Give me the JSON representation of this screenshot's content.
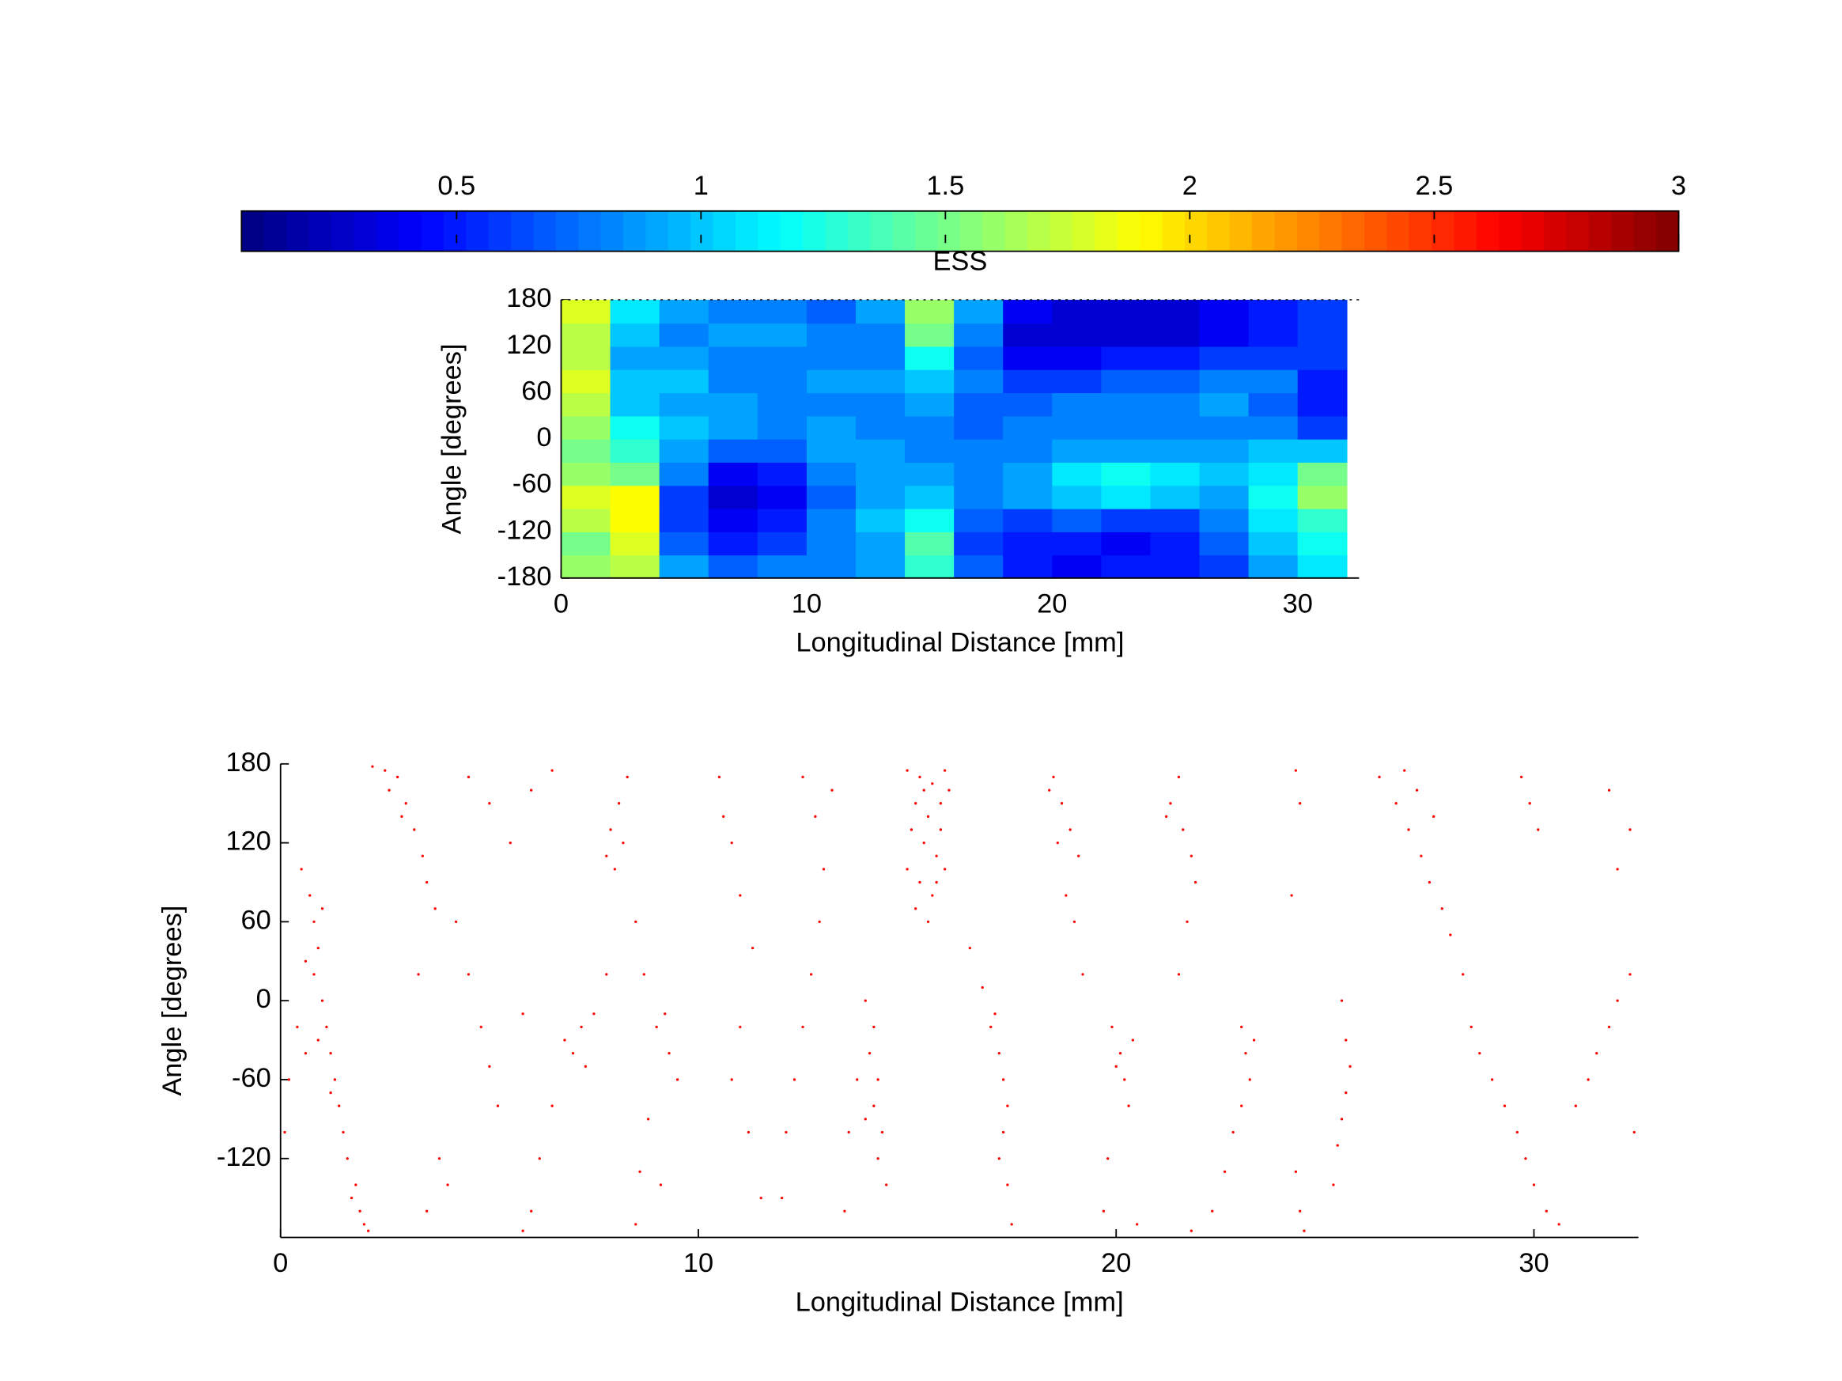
{
  "chart_data": [
    {
      "type": "heatmap",
      "colorbar_label": "ESS",
      "x_label": "Longitudinal Distance [mm]",
      "y_label": "Angle [degrees]",
      "clim": [
        0.06,
        3
      ],
      "cticks": [
        0.5,
        1,
        1.5,
        2,
        2.5,
        3
      ],
      "xlim": [
        0,
        32.5
      ],
      "xticks": [
        0,
        10,
        20,
        30
      ],
      "ylim": [
        -180,
        180
      ],
      "yticks": [
        -180,
        -120,
        -60,
        0,
        60,
        120,
        180
      ],
      "x": [
        1,
        3,
        5,
        7,
        9,
        11,
        13,
        15,
        17,
        19,
        21,
        23,
        25,
        27,
        29,
        31
      ],
      "y": [
        -165,
        -135,
        -105,
        -75,
        -45,
        -15,
        15,
        45,
        75,
        105,
        135,
        165
      ],
      "values": [
        [
          1.6,
          1.7,
          0.9,
          0.7,
          0.8,
          0.8,
          0.9,
          1.3,
          0.7,
          0.5,
          0.4,
          0.5,
          0.5,
          0.6,
          0.9,
          1.1
        ],
        [
          1.5,
          1.8,
          0.7,
          0.5,
          0.6,
          0.8,
          0.9,
          1.4,
          0.6,
          0.5,
          0.5,
          0.4,
          0.5,
          0.7,
          1.0,
          1.2
        ],
        [
          1.7,
          1.9,
          0.6,
          0.4,
          0.5,
          0.8,
          1.0,
          1.2,
          0.7,
          0.6,
          0.7,
          0.6,
          0.6,
          0.8,
          1.1,
          1.3
        ],
        [
          1.8,
          1.9,
          0.6,
          0.3,
          0.4,
          0.7,
          0.9,
          1.0,
          0.8,
          0.9,
          1.0,
          1.1,
          1.0,
          0.9,
          1.2,
          1.6
        ],
        [
          1.6,
          1.5,
          0.8,
          0.4,
          0.5,
          0.8,
          0.9,
          0.9,
          0.8,
          0.9,
          1.1,
          1.2,
          1.1,
          1.0,
          1.1,
          1.5
        ],
        [
          1.5,
          1.3,
          0.9,
          0.7,
          0.7,
          0.9,
          0.9,
          0.8,
          0.8,
          0.8,
          0.9,
          0.9,
          0.9,
          0.9,
          1.0,
          1.0
        ],
        [
          1.6,
          1.2,
          1.0,
          0.9,
          0.8,
          0.9,
          0.8,
          0.8,
          0.7,
          0.8,
          0.8,
          0.8,
          0.8,
          0.8,
          0.8,
          0.6
        ],
        [
          1.7,
          1.0,
          0.9,
          0.9,
          0.8,
          0.8,
          0.8,
          0.9,
          0.7,
          0.7,
          0.8,
          0.8,
          0.8,
          0.9,
          0.7,
          0.5
        ],
        [
          1.8,
          1.0,
          1.0,
          0.8,
          0.8,
          0.9,
          0.9,
          1.0,
          0.8,
          0.6,
          0.6,
          0.7,
          0.7,
          0.8,
          0.8,
          0.5
        ],
        [
          1.7,
          0.9,
          0.9,
          0.8,
          0.8,
          0.8,
          0.8,
          1.2,
          0.7,
          0.4,
          0.4,
          0.5,
          0.5,
          0.6,
          0.6,
          0.6
        ],
        [
          1.7,
          1.0,
          0.8,
          0.9,
          0.9,
          0.8,
          0.8,
          1.5,
          0.8,
          0.3,
          0.3,
          0.3,
          0.3,
          0.4,
          0.5,
          0.6
        ],
        [
          1.8,
          1.1,
          0.9,
          0.8,
          0.8,
          0.7,
          0.9,
          1.6,
          0.9,
          0.4,
          0.3,
          0.3,
          0.3,
          0.4,
          0.5,
          0.6
        ]
      ]
    },
    {
      "type": "scatter",
      "x_label": "Longitudinal Distance [mm]",
      "y_label": "Angle [degrees]",
      "color": "#ff0000",
      "xlim": [
        0,
        32.5
      ],
      "xticks": [
        0,
        10,
        20,
        30
      ],
      "ylim": [
        -180,
        180
      ],
      "yticks": [
        -120,
        -60,
        0,
        60,
        120,
        180
      ],
      "x": [
        0.5,
        0.7,
        0.8,
        0.9,
        0.8,
        1.0,
        1.1,
        1.2,
        1.3,
        1.4,
        1.5,
        1.6,
        1.8,
        1.9,
        2.1,
        0.6,
        0.4,
        0.2,
        0.1,
        0.9,
        1.2,
        1.7,
        2.0,
        1.0,
        0.6,
        2.2,
        2.5,
        2.8,
        2.6,
        3.0,
        3.2,
        3.4,
        2.9,
        3.5,
        3.7,
        3.3,
        4.5,
        5.0,
        5.5,
        6.0,
        6.5,
        4.2,
        4.5,
        4.8,
        5.0,
        3.8,
        3.5,
        4.0,
        5.2,
        5.8,
        7.0,
        7.2,
        7.5,
        6.8,
        7.3,
        7.8,
        6.5,
        6.2,
        6.0,
        5.8,
        8.3,
        8.1,
        7.9,
        7.8,
        8.0,
        8.2,
        8.5,
        8.7,
        9.0,
        9.3,
        9.5,
        9.2,
        8.8,
        8.6,
        8.5,
        9.1,
        10.5,
        10.8,
        11.0,
        11.3,
        11.0,
        10.8,
        11.2,
        11.5,
        10.6,
        12.5,
        12.8,
        13.0,
        12.9,
        12.7,
        12.5,
        12.3,
        12.1,
        12.0,
        13.2,
        14.0,
        14.2,
        14.1,
        14.3,
        14.2,
        14.4,
        14.3,
        14.5,
        13.8,
        13.6,
        14.0,
        13.5,
        15.0,
        15.3,
        15.6,
        15.9,
        15.2,
        15.5,
        15.8,
        15.1,
        15.4,
        15.7,
        15.0,
        15.3,
        15.6,
        15.9,
        15.2,
        15.5,
        15.8,
        16.0,
        15.4,
        15.7,
        16.8,
        17.0,
        17.2,
        17.3,
        17.4,
        17.3,
        17.2,
        17.4,
        17.1,
        17.5,
        16.5,
        18.5,
        18.7,
        18.9,
        19.1,
        18.6,
        18.8,
        19.0,
        19.2,
        18.4,
        19.9,
        20.1,
        20.2,
        20.3,
        20.0,
        20.4,
        19.8,
        19.7,
        20.5,
        21.5,
        21.3,
        21.6,
        21.8,
        21.2,
        21.9,
        21.7,
        21.5,
        23.0,
        23.1,
        23.2,
        23.0,
        22.8,
        23.3,
        22.6,
        22.3,
        21.8,
        24.3,
        24.4,
        24.2,
        24.3,
        24.4,
        24.5,
        25.4,
        25.5,
        25.6,
        25.5,
        25.4,
        25.3,
        25.2,
        26.3,
        26.7,
        27.0,
        27.3,
        27.5,
        27.8,
        28.0,
        27.2,
        26.9,
        28.3,
        27.6,
        28.5,
        29.0,
        29.3,
        29.6,
        29.8,
        30.0,
        30.3,
        28.7,
        30.6,
        29.7,
        29.9,
        30.1,
        31.5,
        31.8,
        32.0,
        32.3,
        31.3,
        31.0,
        32.0,
        32.3,
        31.8,
        32.4
      ],
      "values": [
        100,
        80,
        60,
        40,
        20,
        0,
        -20,
        -40,
        -60,
        -80,
        -100,
        -120,
        -140,
        -160,
        -175,
        30,
        -20,
        -60,
        -100,
        -30,
        -70,
        -150,
        -170,
        70,
        -40,
        178,
        175,
        170,
        160,
        150,
        130,
        110,
        140,
        90,
        70,
        20,
        170,
        150,
        120,
        160,
        175,
        60,
        20,
        -20,
        -50,
        -120,
        -160,
        -140,
        -80,
        -10,
        -40,
        -20,
        -10,
        -30,
        -50,
        20,
        -80,
        -120,
        -160,
        -175,
        170,
        150,
        130,
        110,
        100,
        120,
        60,
        20,
        -20,
        -40,
        -60,
        -10,
        -90,
        -130,
        -170,
        -140,
        170,
        120,
        80,
        40,
        -20,
        -60,
        -100,
        -150,
        140,
        170,
        140,
        100,
        60,
        20,
        -20,
        -60,
        -100,
        -150,
        160,
        0,
        -20,
        -40,
        -60,
        -80,
        -100,
        -120,
        -140,
        -60,
        -100,
        -90,
        -160,
        175,
        170,
        165,
        175,
        150,
        140,
        150,
        130,
        120,
        110,
        100,
        90,
        80,
        100,
        70,
        60,
        130,
        160,
        160,
        90,
        10,
        -20,
        -40,
        -60,
        -80,
        -100,
        -120,
        -140,
        -10,
        -170,
        40,
        170,
        150,
        130,
        110,
        120,
        80,
        60,
        20,
        160,
        -20,
        -40,
        -60,
        -80,
        -50,
        -30,
        -120,
        -160,
        -170,
        170,
        150,
        130,
        110,
        140,
        90,
        60,
        20,
        -20,
        -40,
        -60,
        -80,
        -100,
        -30,
        -130,
        -160,
        -175,
        175,
        150,
        80,
        -130,
        -160,
        -175,
        0,
        -30,
        -50,
        -70,
        -90,
        -110,
        -140,
        170,
        150,
        130,
        110,
        90,
        70,
        50,
        160,
        175,
        20,
        140,
        -20,
        -60,
        -80,
        -100,
        -120,
        -140,
        -160,
        -40,
        -170,
        170,
        150,
        130,
        -40,
        -20,
        0,
        20,
        -60,
        -80,
        100,
        130,
        160,
        -100
      ]
    }
  ]
}
